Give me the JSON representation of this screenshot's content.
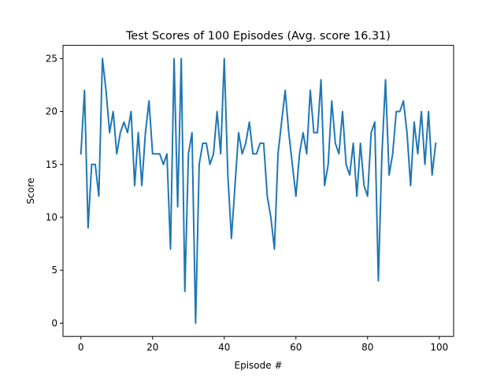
{
  "chart_data": {
    "type": "line",
    "title": "Test Scores of 100 Episodes (Avg. score 16.31)",
    "xlabel": "Episode #",
    "ylabel": "Score",
    "xlim": [
      -5,
      104
    ],
    "ylim": [
      -1.25,
      26.25
    ],
    "xticks": [
      0,
      20,
      40,
      60,
      80,
      100
    ],
    "yticks": [
      0,
      5,
      10,
      15,
      20,
      25
    ],
    "grid": false,
    "series": [
      {
        "color": "#1f77b4",
        "x": [
          0,
          1,
          2,
          3,
          4,
          5,
          6,
          7,
          8,
          9,
          10,
          11,
          12,
          13,
          14,
          15,
          16,
          17,
          18,
          19,
          20,
          21,
          22,
          23,
          24,
          25,
          26,
          27,
          28,
          29,
          30,
          31,
          32,
          33,
          34,
          35,
          36,
          37,
          38,
          39,
          40,
          41,
          42,
          43,
          44,
          45,
          46,
          47,
          48,
          49,
          50,
          51,
          52,
          53,
          54,
          55,
          56,
          57,
          58,
          59,
          60,
          61,
          62,
          63,
          64,
          65,
          66,
          67,
          68,
          69,
          70,
          71,
          72,
          73,
          74,
          75,
          76,
          77,
          78,
          79,
          80,
          81,
          82,
          83,
          84,
          85,
          86,
          87,
          88,
          89,
          90,
          91,
          92,
          93,
          94,
          95,
          96,
          97,
          98,
          99
        ],
        "values": [
          16,
          22,
          9,
          15,
          15,
          12,
          25,
          22,
          18,
          20,
          16,
          18,
          19,
          18,
          20,
          13,
          18,
          13,
          18,
          21,
          16,
          16,
          16,
          15,
          16,
          7,
          25,
          11,
          25,
          3,
          16,
          18,
          0,
          15,
          17,
          17,
          15,
          16,
          20,
          16,
          25,
          14,
          8,
          13,
          18,
          16,
          17,
          19,
          16,
          16,
          17,
          17,
          12,
          10,
          7,
          16,
          19,
          22,
          18,
          15,
          12,
          16,
          18,
          16,
          22,
          18,
          18,
          23,
          13,
          15,
          21,
          17,
          16,
          20,
          15,
          14,
          17,
          12,
          17,
          13,
          12,
          18,
          19,
          4,
          16,
          23,
          14,
          16,
          20,
          20,
          21,
          18,
          13,
          19,
          16,
          20,
          15,
          20,
          14,
          17
        ]
      }
    ]
  }
}
